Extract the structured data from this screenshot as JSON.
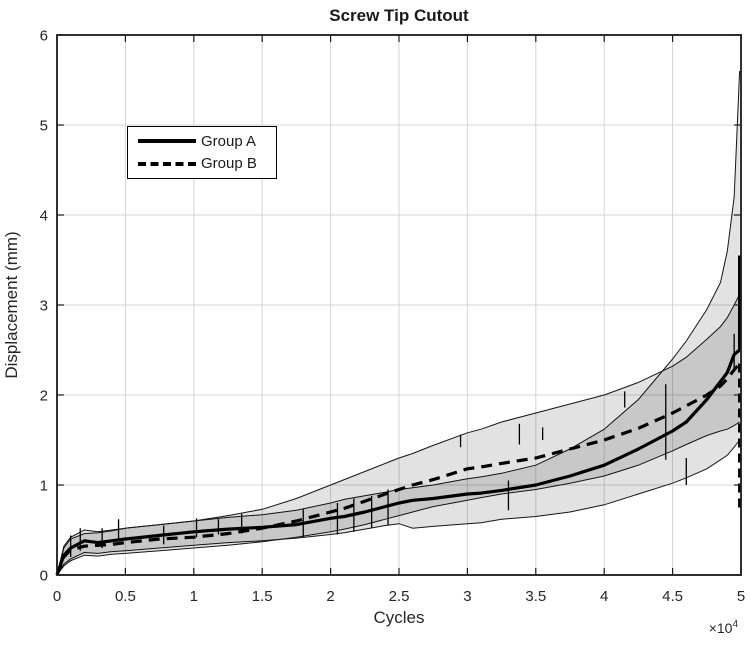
{
  "colors": {
    "background": "#ffffff",
    "axis": "#1a1a1a",
    "grid": "#d4d4d4",
    "tick_text": "#262626",
    "line": "#000000",
    "band_fill": "rgba(0,0,0,0.115)",
    "band_edge": "#151515"
  },
  "chart_data": {
    "type": "line",
    "title": "Screw Tip Cutout",
    "xlabel": "Cycles",
    "ylabel": "Displacement (mm)",
    "exponent_base": "×10",
    "exponent_power": "4",
    "xlim": [
      0,
      5
    ],
    "ylim": [
      0,
      6
    ],
    "grid": true,
    "x_units": "cycles × 10^4",
    "xticks": [
      {
        "v": 0,
        "label": "0"
      },
      {
        "v": 0.5,
        "label": "0.5"
      },
      {
        "v": 1,
        "label": "1"
      },
      {
        "v": 1.5,
        "label": "1.5"
      },
      {
        "v": 2,
        "label": "2"
      },
      {
        "v": 2.5,
        "label": "2.5"
      },
      {
        "v": 3,
        "label": "3"
      },
      {
        "v": 3.5,
        "label": "3.5"
      },
      {
        "v": 4,
        "label": "4"
      },
      {
        "v": 4.5,
        "label": "4.5"
      },
      {
        "v": 5,
        "label": "5"
      }
    ],
    "yticks": [
      {
        "v": 0,
        "label": "0"
      },
      {
        "v": 1,
        "label": "1"
      },
      {
        "v": 2,
        "label": "2"
      },
      {
        "v": 3,
        "label": "3"
      },
      {
        "v": 4,
        "label": "4"
      },
      {
        "v": 5,
        "label": "5"
      },
      {
        "v": 6,
        "label": "6"
      }
    ],
    "legend": {
      "position": "upper-left-inside",
      "entries": [
        {
          "label": "Group A",
          "style": "solid"
        },
        {
          "label": "Group B",
          "style": "dashed"
        }
      ]
    },
    "x": [
      0,
      0.05,
      0.1,
      0.2,
      0.3,
      0.4,
      0.5,
      0.75,
      1.0,
      1.25,
      1.5,
      1.75,
      2.0,
      2.1,
      2.25,
      2.4,
      2.5,
      2.6,
      2.75,
      3.0,
      3.1,
      3.25,
      3.5,
      3.75,
      4.0,
      4.25,
      4.5,
      4.6,
      4.75,
      4.85,
      4.9,
      4.95,
      4.99
    ],
    "series": [
      {
        "name": "Group A",
        "style": "solid",
        "y": [
          0,
          0.22,
          0.3,
          0.38,
          0.36,
          0.38,
          0.4,
          0.44,
          0.48,
          0.51,
          0.53,
          0.56,
          0.63,
          0.65,
          0.7,
          0.76,
          0.8,
          0.83,
          0.85,
          0.9,
          0.91,
          0.94,
          1.0,
          1.1,
          1.22,
          1.4,
          1.6,
          1.7,
          1.95,
          2.15,
          2.25,
          2.45,
          2.5
        ],
        "band_upper": [
          0,
          0.32,
          0.42,
          0.5,
          0.48,
          0.5,
          0.52,
          0.56,
          0.6,
          0.64,
          0.67,
          0.72,
          0.8,
          0.84,
          0.88,
          0.92,
          0.95,
          0.97,
          1.0,
          1.07,
          1.09,
          1.13,
          1.22,
          1.4,
          1.62,
          1.95,
          2.4,
          2.6,
          2.95,
          3.25,
          3.6,
          4.2,
          5.6
        ],
        "band_lower": [
          0,
          0.12,
          0.18,
          0.25,
          0.24,
          0.26,
          0.27,
          0.3,
          0.33,
          0.36,
          0.38,
          0.41,
          0.45,
          0.47,
          0.51,
          0.55,
          0.57,
          0.52,
          0.54,
          0.57,
          0.58,
          0.62,
          0.65,
          0.7,
          0.78,
          0.9,
          1.02,
          1.08,
          1.18,
          1.28,
          1.33,
          1.42,
          1.5
        ]
      },
      {
        "name": "Group B",
        "style": "dashed",
        "y": [
          0,
          0.2,
          0.28,
          0.32,
          0.33,
          0.34,
          0.36,
          0.4,
          0.42,
          0.46,
          0.52,
          0.6,
          0.7,
          0.74,
          0.82,
          0.9,
          0.95,
          1.0,
          1.06,
          1.18,
          1.2,
          1.24,
          1.3,
          1.4,
          1.5,
          1.63,
          1.8,
          1.88,
          2.0,
          2.1,
          2.18,
          2.28,
          2.35
        ],
        "band_upper": [
          0,
          0.3,
          0.4,
          0.46,
          0.47,
          0.49,
          0.52,
          0.56,
          0.6,
          0.66,
          0.73,
          0.85,
          1.0,
          1.06,
          1.15,
          1.24,
          1.3,
          1.35,
          1.44,
          1.58,
          1.62,
          1.7,
          1.8,
          1.9,
          2.0,
          2.14,
          2.32,
          2.42,
          2.62,
          2.76,
          2.86,
          3.0,
          3.12
        ],
        "band_lower": [
          0,
          0.1,
          0.16,
          0.22,
          0.21,
          0.23,
          0.24,
          0.27,
          0.3,
          0.33,
          0.37,
          0.42,
          0.48,
          0.51,
          0.56,
          0.62,
          0.66,
          0.7,
          0.76,
          0.83,
          0.86,
          0.9,
          0.95,
          1.02,
          1.1,
          1.22,
          1.38,
          1.45,
          1.55,
          1.6,
          1.62,
          1.66,
          1.7
        ]
      }
    ],
    "end_events": [
      {
        "series": "Group A",
        "style": "solid",
        "x": 4.99,
        "from": 2.5,
        "to": 3.55
      },
      {
        "series": "Group B",
        "style": "dashed",
        "x": 4.99,
        "from": 2.35,
        "to": 0.75
      }
    ],
    "spikes": [
      {
        "x": 0.1,
        "y1": 0.2,
        "y2": 0.44
      },
      {
        "x": 0.17,
        "y1": 0.27,
        "y2": 0.52
      },
      {
        "x": 0.33,
        "y1": 0.3,
        "y2": 0.52
      },
      {
        "x": 0.45,
        "y1": 0.4,
        "y2": 0.62
      },
      {
        "x": 0.78,
        "y1": 0.34,
        "y2": 0.55
      },
      {
        "x": 1.02,
        "y1": 0.42,
        "y2": 0.63
      },
      {
        "x": 1.18,
        "y1": 0.45,
        "y2": 0.62
      },
      {
        "x": 1.35,
        "y1": 0.46,
        "y2": 0.68
      },
      {
        "x": 1.8,
        "y1": 0.42,
        "y2": 0.73
      },
      {
        "x": 2.05,
        "y1": 0.45,
        "y2": 0.8
      },
      {
        "x": 2.17,
        "y1": 0.48,
        "y2": 0.85
      },
      {
        "x": 2.3,
        "y1": 0.52,
        "y2": 0.88
      },
      {
        "x": 2.42,
        "y1": 0.55,
        "y2": 0.95
      },
      {
        "x": 2.95,
        "y1": 1.42,
        "y2": 1.56
      },
      {
        "x": 3.3,
        "y1": 0.72,
        "y2": 1.05
      },
      {
        "x": 3.38,
        "y1": 1.45,
        "y2": 1.68
      },
      {
        "x": 3.55,
        "y1": 1.5,
        "y2": 1.64
      },
      {
        "x": 4.15,
        "y1": 1.86,
        "y2": 2.04
      },
      {
        "x": 4.45,
        "y1": 1.28,
        "y2": 2.12
      },
      {
        "x": 4.6,
        "y1": 1.0,
        "y2": 1.3
      },
      {
        "x": 4.95,
        "y1": 2.28,
        "y2": 2.68
      }
    ]
  }
}
